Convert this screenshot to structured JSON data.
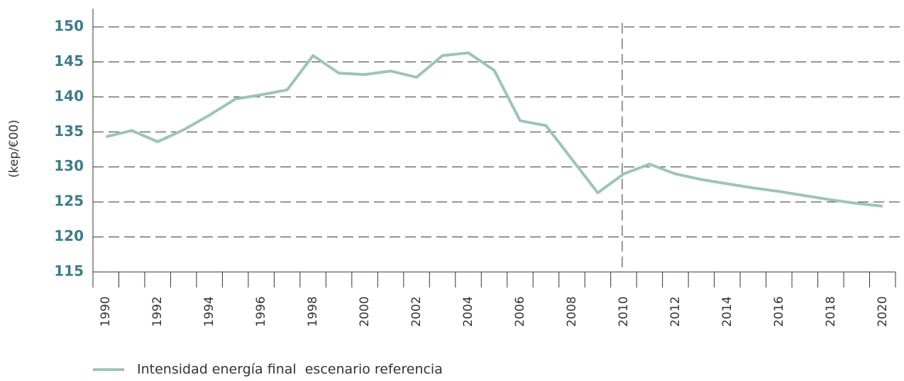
{
  "chart_data": {
    "type": "line",
    "y_label": "(kep/€00)",
    "categories": [
      "1990",
      null,
      "1992",
      null,
      "1994",
      null,
      "1996",
      null,
      "1998",
      null,
      "2000",
      null,
      "2002",
      null,
      "2004",
      null,
      "2006",
      null,
      "2008",
      null,
      "2010",
      null,
      "2012",
      null,
      "2014",
      null,
      "2016",
      null,
      "2018",
      null,
      "2020"
    ],
    "series": [
      {
        "name": "Intensidad energía final  escenario referencia",
        "color": "#9dc4b7",
        "values": [
          134.3,
          135.2,
          133.6,
          135.3,
          137.4,
          139.7,
          140.3,
          141.0,
          145.9,
          143.4,
          143.2,
          143.7,
          142.8,
          145.9,
          146.3,
          143.8,
          136.6,
          135.9,
          131.1,
          126.3,
          129.0,
          130.4,
          129.0,
          128.2,
          127.6,
          127.0,
          126.5,
          125.9,
          125.3,
          124.8,
          124.4
        ]
      }
    ],
    "ylim": [
      115,
      152.6
    ],
    "yticks": [
      115,
      120,
      125,
      130,
      135,
      140,
      145,
      150
    ],
    "grid": true,
    "reference_line": "2010",
    "legend": "bottom-left"
  }
}
